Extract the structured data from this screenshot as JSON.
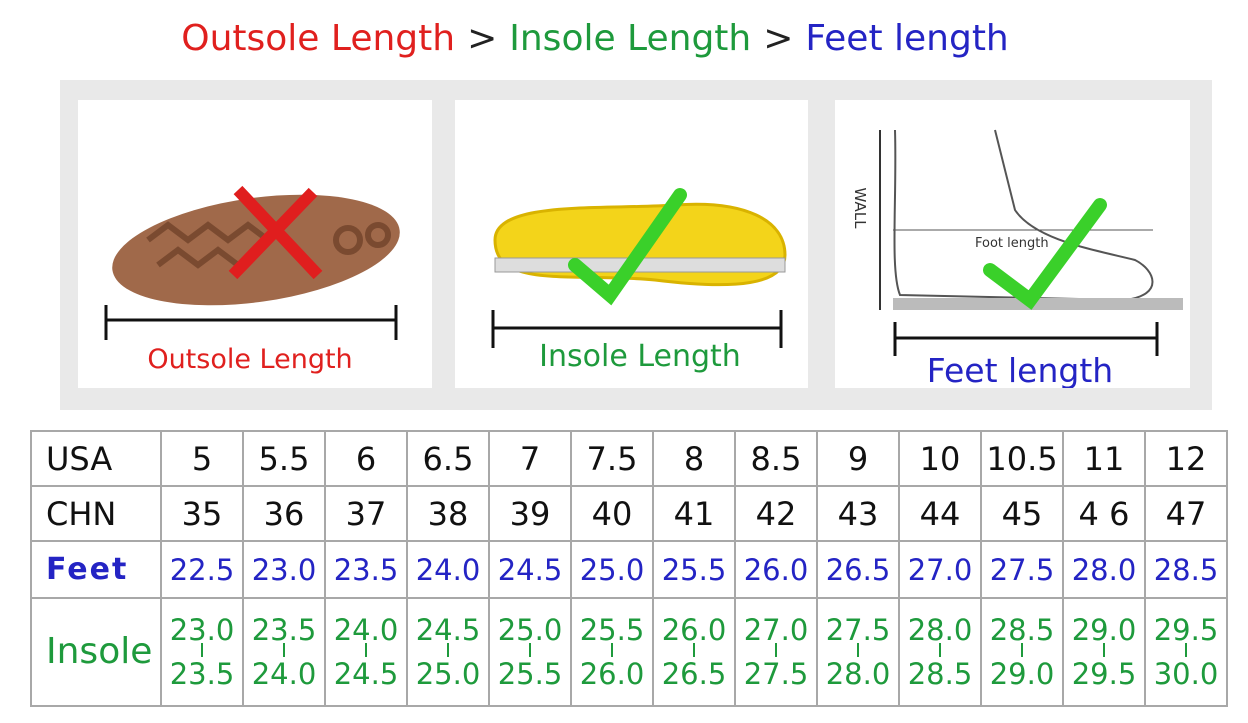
{
  "header": {
    "parts": [
      "Outsole Length",
      ">",
      "Insole Length",
      ">",
      "Feet length"
    ]
  },
  "panels": [
    {
      "label": "Outsole Length"
    },
    {
      "label": "Insole Length"
    },
    {
      "label": "Feet length",
      "wall": "WALL",
      "annotation": "Foot length"
    }
  ],
  "table": {
    "rows": [
      {
        "label": "USA",
        "cells": [
          "5",
          "5.5",
          "6",
          "6.5",
          "7",
          "7.5",
          "8",
          "8.5",
          "9",
          "10",
          "10.5",
          "11",
          "12"
        ]
      },
      {
        "label": "CHN",
        "cells": [
          "35",
          "36",
          "37",
          "38",
          "39",
          "40",
          "41",
          "42",
          "43",
          "44",
          "45",
          "4 6",
          "47"
        ]
      },
      {
        "label": "Feet",
        "cells": [
          "22.5",
          "23.0",
          "23.5",
          "24.0",
          "24.5",
          "25.0",
          "25.5",
          "26.0",
          "26.5",
          "27.0",
          "27.5",
          "28.0",
          "28.5"
        ]
      },
      {
        "label": "Insole",
        "cells": [
          {
            "from": "23.0",
            "to": "23.5"
          },
          {
            "from": "23.5",
            "to": "24.0"
          },
          {
            "from": "24.0",
            "to": "24.5"
          },
          {
            "from": "24.5",
            "to": "25.0"
          },
          {
            "from": "25.0",
            "to": "25.5"
          },
          {
            "from": "25.5",
            "to": "26.0"
          },
          {
            "from": "26.0",
            "to": "26.5"
          },
          {
            "from": "27.0",
            "to": "27.5"
          },
          {
            "from": "27.5",
            "to": "28.0"
          },
          {
            "from": "28.0",
            "to": "28.5"
          },
          {
            "from": "28.5",
            "to": "29.0"
          },
          {
            "from": "29.0",
            "to": "29.5"
          },
          {
            "from": "29.5",
            "to": "30.0"
          }
        ]
      }
    ]
  }
}
